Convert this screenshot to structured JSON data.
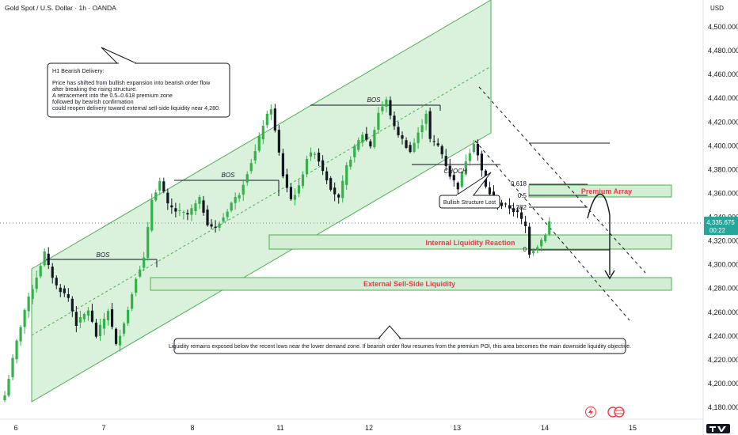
{
  "header": {
    "title": "Gold Spot / U.S. Dollar · 1h · OANDA"
  },
  "price_axis": {
    "currency": "USD",
    "current_price": "4,335.675",
    "countdown": "00:22"
  },
  "chart_data": {
    "type": "candlestick",
    "title": "Gold Spot / U.S. Dollar · 1h · OANDA",
    "ylim": [
      4170,
      4520
    ],
    "y_ticks": [
      4180,
      4200,
      4220,
      4240,
      4260,
      4280,
      4300,
      4320,
      4340,
      4360,
      4380,
      4400,
      4420,
      4440,
      4460,
      4480,
      4500
    ],
    "y_tick_labels": [
      "4,180.000",
      "4,200.000",
      "4,220.000",
      "4,240.000",
      "4,260.000",
      "4,280.000",
      "4,300.000",
      "4,320.000",
      "4,340.000",
      "4,360.000",
      "4,380.000",
      "4,400.000",
      "4,420.000",
      "4,440.000",
      "4,460.000",
      "4,480.000",
      "4,500.000"
    ],
    "x_days": [
      6,
      7,
      8,
      11,
      12,
      13,
      14,
      15
    ],
    "x_labels": [
      "6",
      "7",
      "8",
      "11",
      "12",
      "13",
      "14",
      "15"
    ],
    "current_price": 4335.675,
    "anchors": [
      [
        0,
        4190
      ],
      [
        3,
        4235
      ],
      [
        5,
        4262
      ],
      [
        8,
        4290
      ],
      [
        10,
        4310
      ],
      [
        11,
        4298
      ],
      [
        13,
        4282
      ],
      [
        16,
        4272
      ],
      [
        18,
        4250
      ],
      [
        21,
        4262
      ],
      [
        23,
        4240
      ],
      [
        26,
        4262
      ],
      [
        28,
        4232
      ],
      [
        31,
        4262
      ],
      [
        33,
        4290
      ],
      [
        35,
        4305
      ],
      [
        37,
        4355
      ],
      [
        39,
        4370
      ],
      [
        41,
        4350
      ],
      [
        43,
        4345
      ],
      [
        46,
        4342
      ],
      [
        49,
        4355
      ],
      [
        51,
        4335
      ],
      [
        53,
        4330
      ],
      [
        55,
        4340
      ],
      [
        57,
        4352
      ],
      [
        59,
        4360
      ],
      [
        61,
        4378
      ],
      [
        63,
        4395
      ],
      [
        65,
        4418
      ],
      [
        67,
        4432
      ],
      [
        68,
        4412
      ],
      [
        70,
        4375
      ],
      [
        72,
        4355
      ],
      [
        74,
        4365
      ],
      [
        76,
        4390
      ],
      [
        78,
        4395
      ],
      [
        80,
        4380
      ],
      [
        82,
        4365
      ],
      [
        84,
        4355
      ],
      [
        86,
        4382
      ],
      [
        88,
        4398
      ],
      [
        90,
        4410
      ],
      [
        92,
        4400
      ],
      [
        94,
        4428
      ],
      [
        96,
        4438
      ],
      [
        98,
        4415
      ],
      [
        100,
        4405
      ],
      [
        102,
        4395
      ],
      [
        104,
        4410
      ],
      [
        106,
        4428
      ],
      [
        107,
        4405
      ],
      [
        109,
        4400
      ],
      [
        110,
        4393
      ],
      [
        112,
        4375
      ],
      [
        114,
        4365
      ],
      [
        116,
        4388
      ],
      [
        118,
        4403
      ],
      [
        119,
        4392
      ],
      [
        121,
        4365
      ],
      [
        123,
        4355
      ],
      [
        125,
        4350
      ],
      [
        127,
        4348
      ],
      [
        129,
        4343
      ],
      [
        131,
        4332
      ],
      [
        132,
        4310
      ],
      [
        134,
        4316
      ],
      [
        136,
        4326
      ],
      [
        137,
        4336
      ]
    ],
    "levels": {
      "premium_array": [
        4356,
        4366
      ],
      "internal_liquidity_reaction": [
        4311,
        4322
      ],
      "external_sell_side_liquidity": [
        4281,
        4291
      ],
      "fib_levels": {
        "fib_618": 4364.4,
        "fib_05": 4355.8,
        "fib_0382": 4347.2,
        "fib_0": 4311.7,
        "fib_1": 4403.5
      }
    },
    "annotations": {
      "bos": [
        "BOS",
        "BOS",
        "BOS"
      ],
      "choch": "CHOCH",
      "premium_array_label": "Premium Array",
      "internal_liquidity_label": "Internal Liquidity Reaction",
      "external_liquidity_label": "External Sell-Side Liquidity",
      "fib_618_label": "0.618",
      "fib_05_label": "0.5",
      "fib_0382_label": "0.382",
      "fib_0_label": "0",
      "structure_lost_label": "Bullish Structure Lost",
      "bearish_note": [
        "H1 Bearish Delivery:",
        "",
        "Price has shifted from bullish expansion into bearish order flow",
        "after breaking the rising structure.",
        "A retracement into the 0.5–0.618 premium zone",
        "followed by bearish confirmation",
        "could reopen delivery toward external sell-side liquidity near 4,280."
      ],
      "liquidity_note": "Liquidity remains exposed below the recent lows near the lower demand zone. If bearish order flow resumes from the premium POI, this area becomes the main downside liquidity objective."
    },
    "colors": {
      "up": "#26a69a",
      "down": "#131722",
      "channel_fill": "#d6efd8",
      "channel_line": "#4caf50",
      "zone_fill": "#d3eed5",
      "zone_stroke": "#4caf50",
      "label_red": "#f23645",
      "bull_candle": "#33b24a"
    }
  }
}
